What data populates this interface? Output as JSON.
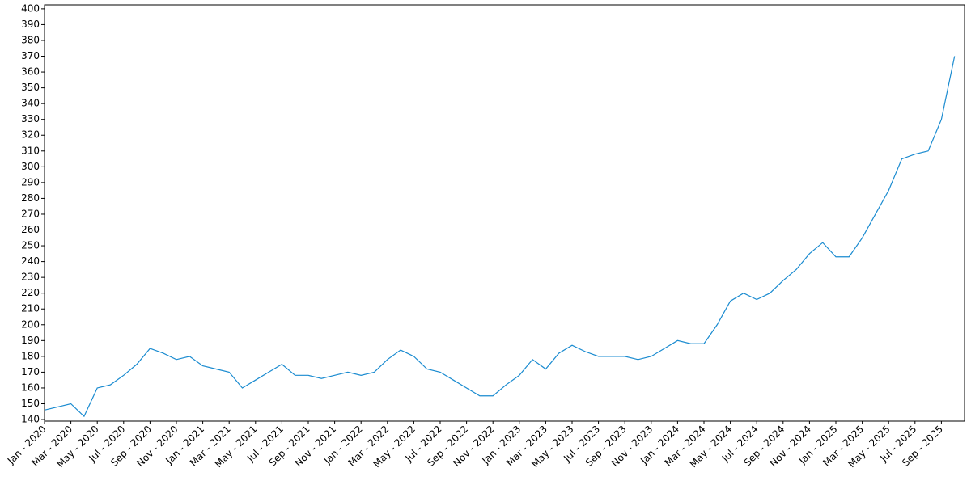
{
  "chart_data": {
    "type": "line",
    "x": [
      "2020-01",
      "2020-02",
      "2020-03",
      "2020-04",
      "2020-05",
      "2020-06",
      "2020-07",
      "2020-08",
      "2020-09",
      "2020-10",
      "2020-11",
      "2020-12",
      "2021-01",
      "2021-02",
      "2021-03",
      "2021-04",
      "2021-05",
      "2021-06",
      "2021-07",
      "2021-08",
      "2021-09",
      "2021-10",
      "2021-11",
      "2021-12",
      "2022-01",
      "2022-02",
      "2022-03",
      "2022-04",
      "2022-05",
      "2022-06",
      "2022-07",
      "2022-08",
      "2022-09",
      "2022-10",
      "2022-11",
      "2022-12",
      "2023-01",
      "2023-02",
      "2023-03",
      "2023-04",
      "2023-05",
      "2023-06",
      "2023-07",
      "2023-08",
      "2023-09",
      "2023-10",
      "2023-11",
      "2023-12",
      "2024-01",
      "2024-02",
      "2024-03",
      "2024-04",
      "2024-05",
      "2024-06",
      "2024-07",
      "2024-08",
      "2024-09",
      "2024-10",
      "2024-11",
      "2024-12",
      "2025-01",
      "2025-02",
      "2025-03",
      "2025-04",
      "2025-05",
      "2025-06",
      "2025-07",
      "2025-08",
      "2025-09",
      "2025-10"
    ],
    "series": [
      {
        "color": "#1a8bd0",
        "values": [
          146,
          148,
          150,
          142,
          160,
          162,
          168,
          175,
          185,
          182,
          178,
          180,
          174,
          172,
          170,
          160,
          165,
          170,
          175,
          168,
          168,
          166,
          168,
          170,
          168,
          170,
          178,
          184,
          180,
          172,
          170,
          165,
          160,
          155,
          155,
          162,
          168,
          178,
          172,
          182,
          187,
          183,
          180,
          180,
          180,
          178,
          180,
          185,
          190,
          188,
          188,
          200,
          215,
          220,
          216,
          220,
          228,
          235,
          245,
          252,
          243,
          243,
          255,
          270,
          285,
          305,
          308,
          310,
          330,
          370
        ]
      }
    ],
    "ylim": [
      139,
      402.5
    ],
    "yticks": [
      140,
      150,
      160,
      170,
      180,
      190,
      200,
      210,
      220,
      230,
      240,
      250,
      260,
      270,
      280,
      290,
      300,
      310,
      320,
      330,
      340,
      350,
      360,
      370,
      380,
      390,
      400
    ],
    "xticks": [
      {
        "value": "2020-01",
        "label": "Jan - 2020"
      },
      {
        "value": "2020-03",
        "label": "Mar - 2020"
      },
      {
        "value": "2020-05",
        "label": "May - 2020"
      },
      {
        "value": "2020-07",
        "label": "Jul - 2020"
      },
      {
        "value": "2020-09",
        "label": "Sep - 2020"
      },
      {
        "value": "2020-11",
        "label": "Nov - 2020"
      },
      {
        "value": "2021-01",
        "label": "Jan - 2021"
      },
      {
        "value": "2021-03",
        "label": "Mar - 2021"
      },
      {
        "value": "2021-05",
        "label": "May - 2021"
      },
      {
        "value": "2021-07",
        "label": "Jul - 2021"
      },
      {
        "value": "2021-09",
        "label": "Sep - 2021"
      },
      {
        "value": "2021-11",
        "label": "Nov - 2021"
      },
      {
        "value": "2022-01",
        "label": "Jan - 2022"
      },
      {
        "value": "2022-03",
        "label": "Mar - 2022"
      },
      {
        "value": "2022-05",
        "label": "May - 2022"
      },
      {
        "value": "2022-07",
        "label": "Jul - 2022"
      },
      {
        "value": "2022-09",
        "label": "Sep - 2022"
      },
      {
        "value": "2022-11",
        "label": "Nov - 2022"
      },
      {
        "value": "2023-01",
        "label": "Jan - 2023"
      },
      {
        "value": "2023-03",
        "label": "Mar - 2023"
      },
      {
        "value": "2023-05",
        "label": "May - 2023"
      },
      {
        "value": "2023-07",
        "label": "Jul - 2023"
      },
      {
        "value": "2023-09",
        "label": "Sep - 2023"
      },
      {
        "value": "2023-11",
        "label": "Nov - 2023"
      },
      {
        "value": "2024-01",
        "label": "Jan - 2024"
      },
      {
        "value": "2024-03",
        "label": "Mar - 2024"
      },
      {
        "value": "2024-05",
        "label": "May - 2024"
      },
      {
        "value": "2024-07",
        "label": "Jul - 2024"
      },
      {
        "value": "2024-09",
        "label": "Sep - 2024"
      },
      {
        "value": "2024-11",
        "label": "Nov - 2024"
      },
      {
        "value": "2025-01",
        "label": "Jan - 2025"
      },
      {
        "value": "2025-03",
        "label": "Mar - 2025"
      },
      {
        "value": "2025-05",
        "label": "May - 2025"
      },
      {
        "value": "2025-07",
        "label": "Jul - 2025"
      },
      {
        "value": "2025-09",
        "label": "Sep - 2025"
      }
    ]
  }
}
